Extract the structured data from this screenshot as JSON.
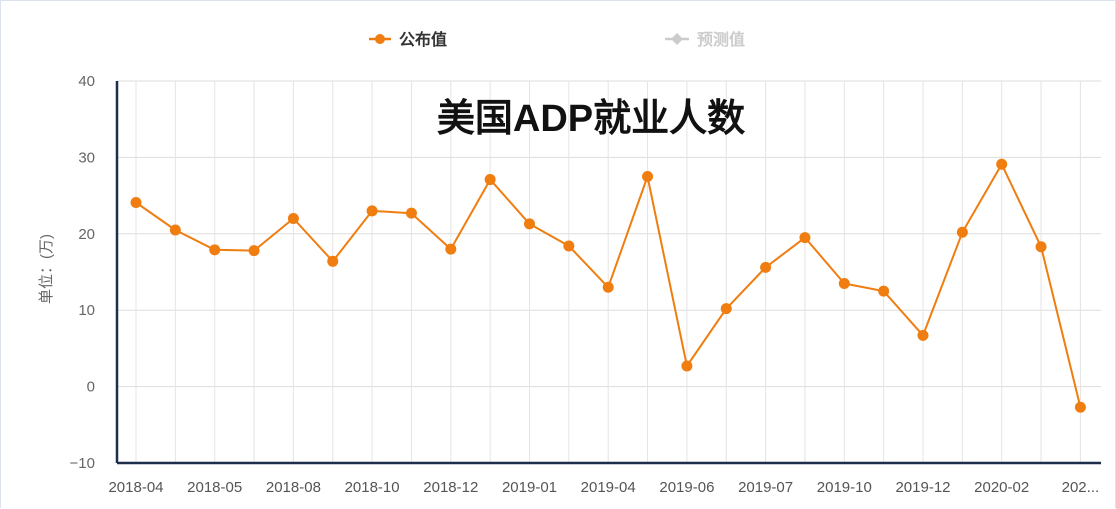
{
  "chart_data": {
    "type": "line",
    "title": "美国ADP就业人数",
    "ylabel": "单位：(万)",
    "xlabel": "",
    "ylim": [
      -10,
      40
    ],
    "yticks": [
      40,
      30,
      20,
      10,
      0,
      -10
    ],
    "grid": true,
    "legend_position": "top-center",
    "x_tick_labels": [
      "2018-04",
      "2018-05",
      "2018-08",
      "2018-10",
      "2018-12",
      "2019-01",
      "2019-04",
      "2019-06",
      "2019-07",
      "2019-10",
      "2019-12",
      "2020-02",
      "202..."
    ],
    "series": [
      {
        "name": "公布值",
        "color": "#f07d10",
        "active": true,
        "values": [
          24.1,
          20.5,
          17.9,
          17.8,
          22.0,
          16.4,
          23.0,
          22.7,
          18.0,
          27.1,
          21.3,
          18.4,
          13.0,
          27.5,
          2.7,
          10.2,
          15.6,
          19.5,
          13.5,
          12.5,
          6.7,
          20.2,
          29.1,
          18.3,
          -2.7
        ]
      },
      {
        "name": "预测值",
        "color": "#cccccc",
        "active": false,
        "values": []
      }
    ]
  }
}
